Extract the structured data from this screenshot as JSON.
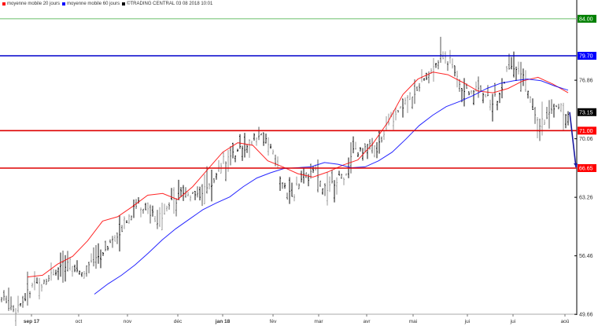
{
  "legend": [
    {
      "label": "moyenne mobile 20 jours",
      "color": "#ff0000"
    },
    {
      "label": "moyenne mobile 60 jours",
      "color": "#0000ff"
    },
    {
      "label": "©TRADING CENTRAL 03 08 2018 10:01",
      "color": "#000000"
    }
  ],
  "chart_data": {
    "type": "ohlc",
    "title": "",
    "xlabel": "",
    "ylabel": "",
    "ylim": [
      49.66,
      86.0
    ],
    "grid": false,
    "legend_position": "top-left",
    "x_ticks": [
      "sep 17",
      "oct",
      "nov",
      "déc",
      "jan 18",
      "fév",
      "mar",
      "avr",
      "mai",
      "jui",
      "jui",
      "aoû"
    ],
    "y_ticks": [
      49.66,
      56.46,
      63.26,
      70.06,
      76.86
    ],
    "horizontal_levels": [
      {
        "value": 84.0,
        "label": "84.00",
        "color": "#6abf6a",
        "label_bg": "#008000"
      },
      {
        "value": 79.7,
        "label": "79.70",
        "color": "#0000cc",
        "label_bg": "#0000ff"
      },
      {
        "value": 71.0,
        "label": "71.00",
        "color": "#dd0000",
        "label_bg": "#ff0000"
      },
      {
        "value": 66.65,
        "label": "66.65",
        "color": "#dd0000",
        "label_bg": "#ff0000"
      }
    ],
    "last_price": {
      "value": 73.15,
      "label": "73.15"
    },
    "projection": {
      "from": 73.15,
      "to": 66.65,
      "color": "#1a1aa0"
    },
    "price_series_approx": [
      {
        "month": "sep 17",
        "low": 50.0,
        "high": 53.2
      },
      {
        "month": "oct",
        "low": 52.0,
        "high": 58.5
      },
      {
        "month": "nov",
        "low": 56.0,
        "high": 63.7
      },
      {
        "month": "déc",
        "low": 61.5,
        "high": 65.5
      },
      {
        "month": "jan 18",
        "low": 63.5,
        "high": 70.0
      },
      {
        "month": "fév",
        "low": 61.5,
        "high": 71.2
      },
      {
        "month": "mar",
        "low": 62.7,
        "high": 66.5
      },
      {
        "month": "avr",
        "low": 66.5,
        "high": 75.8
      },
      {
        "month": "mai",
        "low": 73.5,
        "high": 80.3
      },
      {
        "month": "jui",
        "low": 72.0,
        "high": 78.2
      },
      {
        "month": "jui",
        "low": 71.0,
        "high": 79.9
      },
      {
        "month": "aoû",
        "low": 72.5,
        "high": 75.0
      }
    ],
    "series": [
      {
        "name": "moyenne mobile 20 jours",
        "color": "#ff0000",
        "values": [
          54.0,
          54.2,
          55.5,
          56.4,
          58.2,
          60.5,
          61.0,
          62.2,
          63.5,
          63.7,
          63.0,
          64.5,
          66.5,
          68.5,
          69.6,
          69.3,
          67.5,
          66.8,
          66.0,
          65.6,
          66.2,
          67.0,
          67.6,
          69.5,
          72.0,
          75.2,
          77.0,
          77.8,
          77.5,
          76.6,
          75.6,
          75.4,
          75.9,
          76.8,
          77.2,
          76.4,
          75.4
        ]
      },
      {
        "name": "moyenne mobile 60 jours",
        "color": "#0000ff",
        "values": [
          52.0,
          53.2,
          54.2,
          55.4,
          56.8,
          58.3,
          59.6,
          60.7,
          61.8,
          62.6,
          63.3,
          64.5,
          65.5,
          66.1,
          66.6,
          66.7,
          66.8,
          67.3,
          67.1,
          66.7,
          66.8,
          67.5,
          68.5,
          70.0,
          71.6,
          72.8,
          73.8,
          74.4,
          75.1,
          75.9,
          76.5,
          76.8,
          77.0,
          76.8,
          76.2,
          75.7
        ]
      }
    ]
  }
}
